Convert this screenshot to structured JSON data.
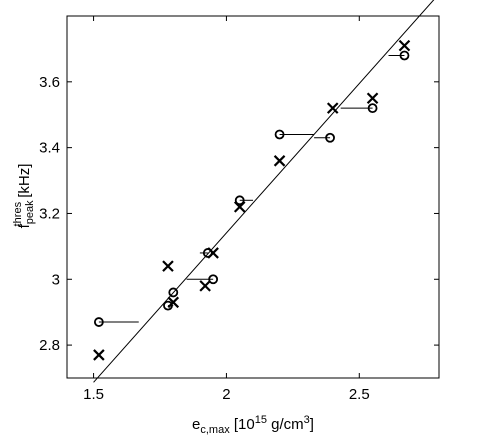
{
  "chart_data": {
    "type": "scatter",
    "xlabel": {
      "base": "e",
      "subscript": "c,max",
      "unit_pre": " [10",
      "unit_exp": "15",
      "unit_mid": " g/cm",
      "unit_exp2": "3",
      "unit_post": "]"
    },
    "ylabel": {
      "base": "f",
      "subscript": "peak",
      "superscript": "thres",
      "unit": " [kHz]"
    },
    "xlim": [
      1.4,
      2.8
    ],
    "ylim": [
      2.7,
      3.8
    ],
    "xticks": [
      1.5,
      2,
      2.5
    ],
    "xtick_labels": [
      "1.5",
      "2",
      "2.5"
    ],
    "yticks": [
      2.8,
      3.0,
      3.2,
      3.4,
      3.6
    ],
    "ytick_labels": [
      "2.8",
      "3",
      "3.2",
      "3.4",
      "3.6"
    ],
    "grid": false,
    "legend": "none",
    "series": [
      {
        "marker": "x",
        "x": [
          1.52,
          1.78,
          1.8,
          1.92,
          1.95,
          2.05,
          2.2,
          2.4,
          2.55,
          2.67
        ],
        "y": [
          2.77,
          3.04,
          2.93,
          2.98,
          3.08,
          3.22,
          3.36,
          3.52,
          3.55,
          3.71
        ]
      },
      {
        "marker": "o",
        "x": [
          1.52,
          1.78,
          1.8,
          1.93,
          1.95,
          2.05,
          2.2,
          2.39,
          2.55,
          2.67
        ],
        "y": [
          2.87,
          2.92,
          2.96,
          3.08,
          3.0,
          3.24,
          3.44,
          3.43,
          3.52,
          3.68
        ]
      }
    ],
    "connectors": [
      {
        "x": [
          1.52,
          1.67
        ],
        "y": [
          2.87,
          2.87
        ]
      },
      {
        "x": [
          1.78,
          1.8
        ],
        "y": [
          2.92,
          2.92
        ]
      },
      {
        "x": [
          1.8,
          1.8
        ],
        "y": [
          2.96,
          2.96
        ]
      },
      {
        "x": [
          1.85,
          1.95
        ],
        "y": [
          3.0,
          3.0
        ]
      },
      {
        "x": [
          1.9,
          1.93
        ],
        "y": [
          3.08,
          3.08
        ]
      },
      {
        "x": [
          2.05,
          2.1
        ],
        "y": [
          3.24,
          3.24
        ]
      },
      {
        "x": [
          2.2,
          2.33
        ],
        "y": [
          3.44,
          3.44
        ]
      },
      {
        "x": [
          2.33,
          2.39
        ],
        "y": [
          3.43,
          3.43
        ]
      },
      {
        "x": [
          2.43,
          2.55
        ],
        "y": [
          3.52,
          3.52
        ]
      },
      {
        "x": [
          2.61,
          2.67
        ],
        "y": [
          3.68,
          3.68
        ]
      }
    ],
    "fit_line": {
      "x": [
        1.5,
        2.8
      ],
      "y": [
        2.687,
        3.867
      ]
    }
  }
}
